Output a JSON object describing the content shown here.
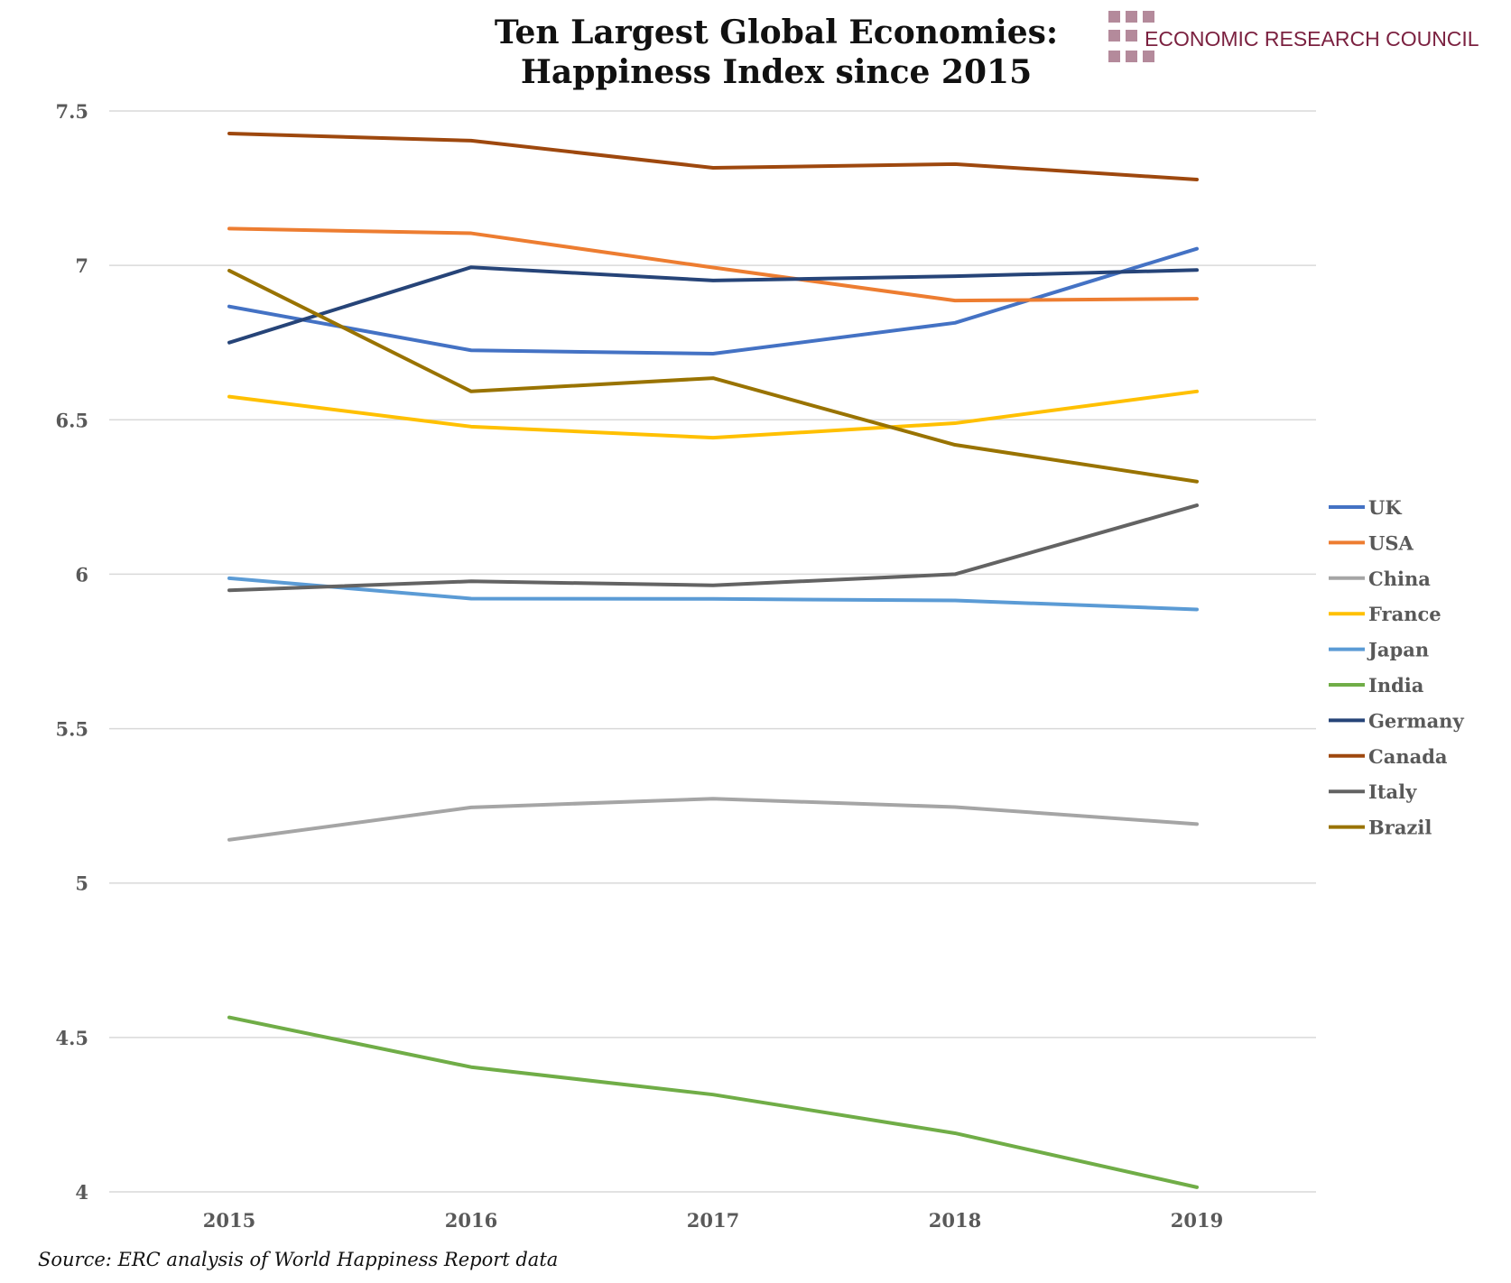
{
  "chart_data": {
    "type": "line",
    "title": [
      "Ten Largest Global Economies:",
      "Happiness Index since 2015"
    ],
    "xlabel": "",
    "ylabel": "",
    "x": [
      "2015",
      "2016",
      "2017",
      "2018",
      "2019"
    ],
    "ylim": [
      4,
      7.5
    ],
    "yticks": [
      {
        "value": 7.5,
        "label": "7.5"
      },
      {
        "value": 7,
        "label": "7"
      },
      {
        "value": 6.5,
        "label": "6.5"
      },
      {
        "value": 6,
        "label": "6"
      },
      {
        "value": 5.5,
        "label": "5.5"
      },
      {
        "value": 5,
        "label": "5"
      },
      {
        "value": 4.5,
        "label": "4.5"
      },
      {
        "value": 4,
        "label": "4"
      }
    ],
    "grid": true,
    "legend_position": "right",
    "series": [
      {
        "name": "UK",
        "color": "#4472c4",
        "values": [
          6.867,
          6.725,
          6.714,
          6.814,
          7.054
        ]
      },
      {
        "name": "USA",
        "color": "#ed7d31",
        "values": [
          7.119,
          7.104,
          6.993,
          6.886,
          6.892
        ]
      },
      {
        "name": "China",
        "color": "#a5a5a5",
        "values": [
          5.14,
          5.245,
          5.273,
          5.246,
          5.191
        ]
      },
      {
        "name": "France",
        "color": "#ffc000",
        "values": [
          6.575,
          6.478,
          6.442,
          6.489,
          6.592
        ]
      },
      {
        "name": "Japan",
        "color": "#5b9bd5",
        "values": [
          5.987,
          5.921,
          5.92,
          5.915,
          5.886
        ]
      },
      {
        "name": "India",
        "color": "#70ad47",
        "values": [
          4.565,
          4.404,
          4.315,
          4.19,
          4.015
        ]
      },
      {
        "name": "Germany",
        "color": "#264478",
        "values": [
          6.75,
          6.994,
          6.951,
          6.965,
          6.985
        ]
      },
      {
        "name": "Canada",
        "color": "#9e480e",
        "values": [
          7.427,
          7.404,
          7.316,
          7.328,
          7.278
        ]
      },
      {
        "name": "Italy",
        "color": "#636363",
        "values": [
          5.948,
          5.977,
          5.964,
          6.0,
          6.223
        ]
      },
      {
        "name": "Brazil",
        "color": "#997300",
        "values": [
          6.983,
          6.592,
          6.635,
          6.419,
          6.3
        ]
      }
    ],
    "source": "Source: ERC analysis of World Happiness Report data"
  },
  "logo": {
    "org_name": "ECONOMIC RESEARCH COUNCIL",
    "color": "#7b2140",
    "square_color": "#b48a9b"
  }
}
